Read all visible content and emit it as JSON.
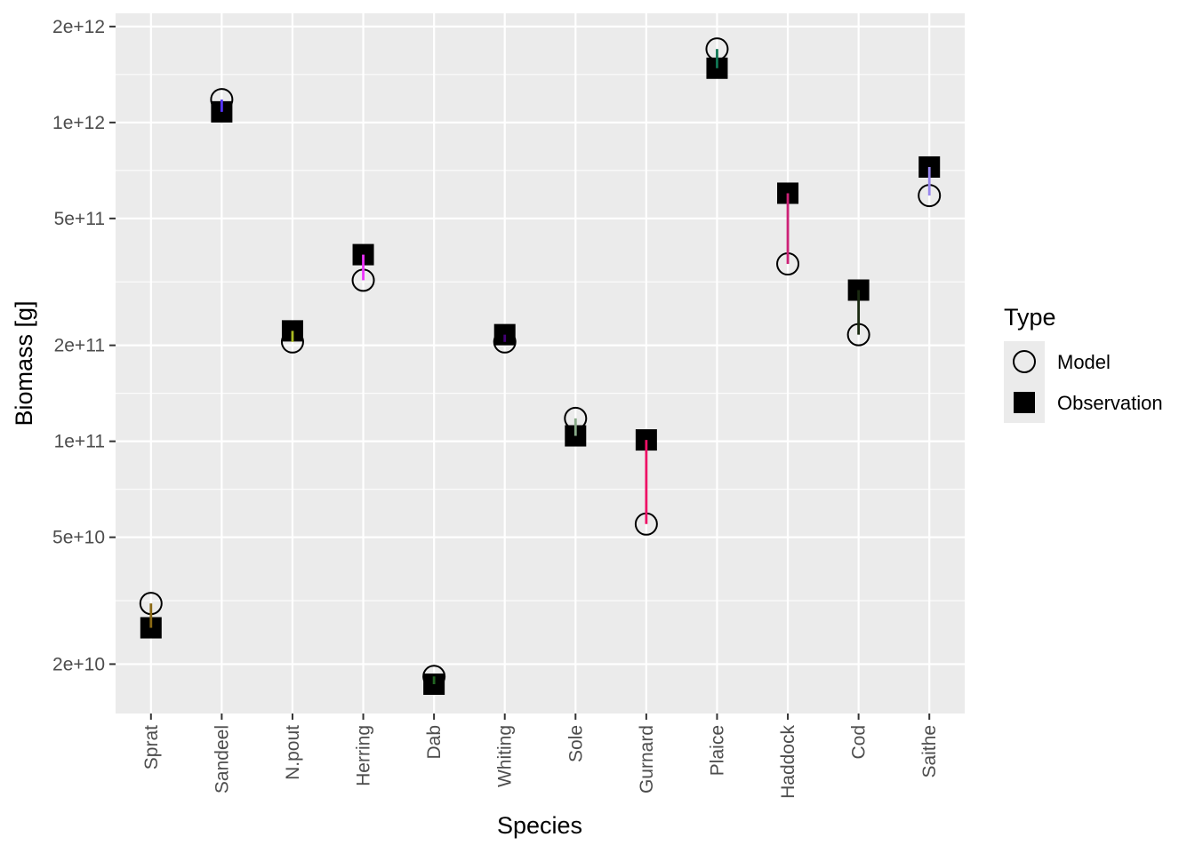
{
  "chart_data": {
    "type": "scatter",
    "title": "",
    "xlabel": "Species",
    "ylabel": "Biomass [g]",
    "y_scale": "log10",
    "ylim": [
      14000000000,
      2200000000000
    ],
    "y_ticks": [
      {
        "value": 20000000000,
        "label": "2e+10"
      },
      {
        "value": 50000000000,
        "label": "5e+10"
      },
      {
        "value": 100000000000,
        "label": "1e+11"
      },
      {
        "value": 200000000000,
        "label": "2e+11"
      },
      {
        "value": 500000000000,
        "label": "5e+11"
      },
      {
        "value": 1000000000000,
        "label": "1e+12"
      },
      {
        "value": 2000000000000,
        "label": "2e+12"
      }
    ],
    "categories": [
      "Sprat",
      "Sandeel",
      "N.pout",
      "Herring",
      "Dab",
      "Whiting",
      "Sole",
      "Gurnard",
      "Plaice",
      "Haddock",
      "Cod",
      "Saithe"
    ],
    "series": [
      {
        "name": "Model",
        "marker": "open-circle",
        "values": [
          31000000000,
          1180000000000,
          205000000000,
          320000000000,
          18300000000,
          205000000000,
          118000000000,
          55000000000,
          1700000000000,
          360000000000,
          216000000000,
          590000000000
        ]
      },
      {
        "name": "Observation",
        "marker": "filled-square",
        "values": [
          26000000000,
          1080000000000,
          222000000000,
          385000000000,
          17300000000,
          216000000000,
          104000000000,
          101000000000,
          1480000000000,
          600000000000,
          298000000000,
          725000000000
        ]
      }
    ],
    "segment_colors": [
      "#8B6914",
      "#5533ff",
      "#aabb22",
      "#ee33ff",
      "#226622",
      "#440077",
      "#88aa88",
      "#ee1166",
      "#117755",
      "#cc2277",
      "#1a2a11",
      "#9988ee"
    ],
    "grid": true,
    "legend": {
      "title": "Type",
      "position": "right"
    },
    "colors": {
      "panel_background": "#ebebeb",
      "grid": "#ffffff",
      "marker": "#000000"
    }
  }
}
